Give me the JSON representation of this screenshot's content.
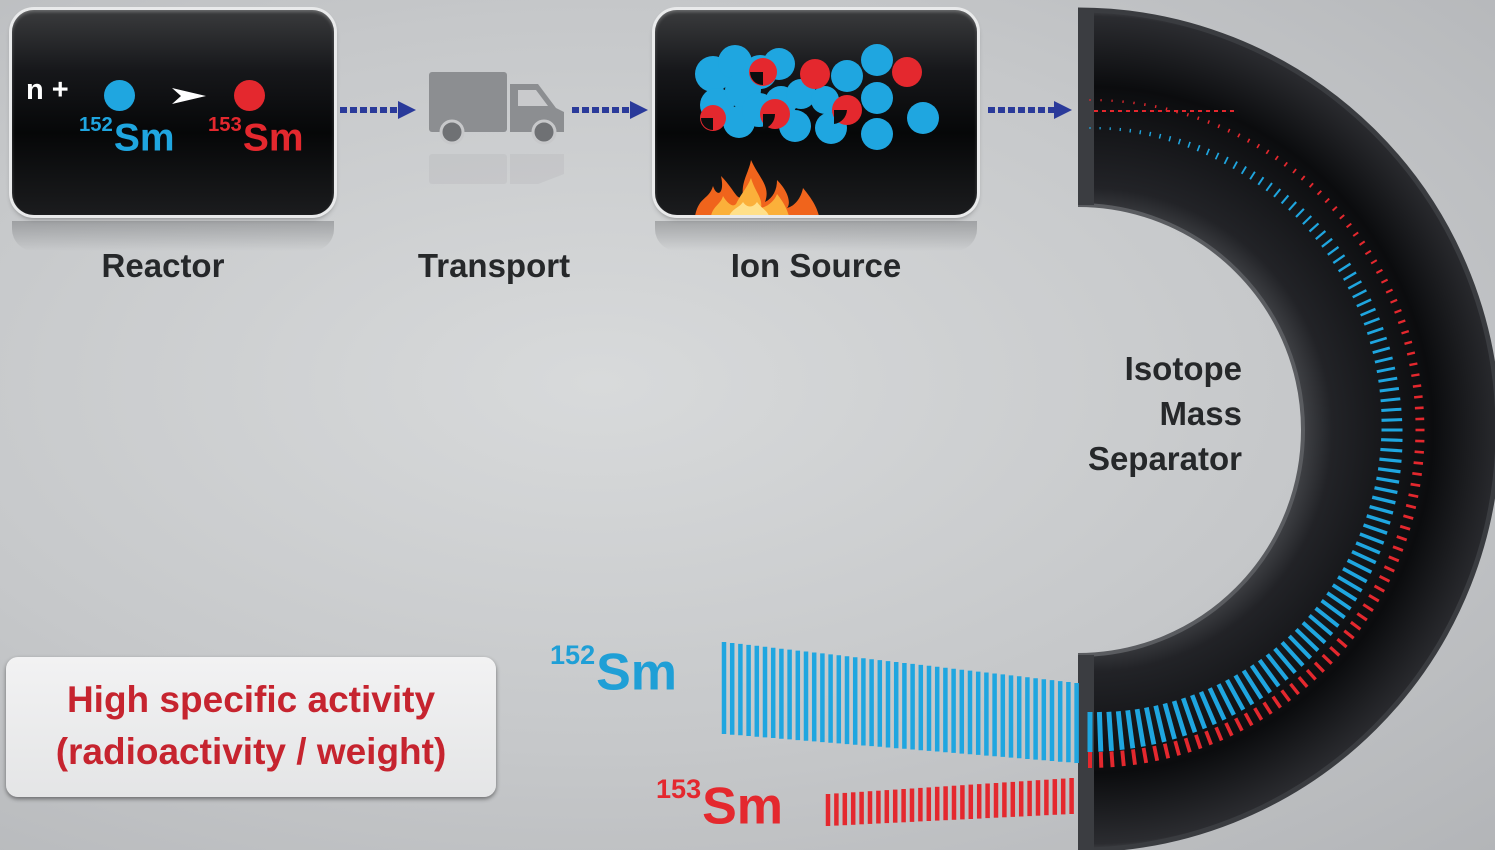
{
  "stages": [
    {
      "label": "Reactor"
    },
    {
      "label": "Transport"
    },
    {
      "label": "Ion Source"
    }
  ],
  "reaction": {
    "prefix": "n +",
    "reactant_mass": "152",
    "reactant_symbol": "Sm",
    "product_mass": "153",
    "product_symbol": "Sm"
  },
  "separator": {
    "lines": [
      "Isotope",
      "Mass",
      "Separator"
    ]
  },
  "output_beams": [
    {
      "mass": "152",
      "symbol": "Sm"
    },
    {
      "mass": "153",
      "symbol": "Sm"
    }
  ],
  "callout": {
    "line1": "High specific activity",
    "line2": "(radioactivity / weight)"
  },
  "colors": {
    "sm152": "#1fa6e0",
    "sm153": "#e4282e",
    "flow_arrow": "#2a3a9a",
    "callout_text": "#c6242f"
  },
  "icons": [
    "truck-icon",
    "fire-icon",
    "flow-arrow-icon"
  ]
}
